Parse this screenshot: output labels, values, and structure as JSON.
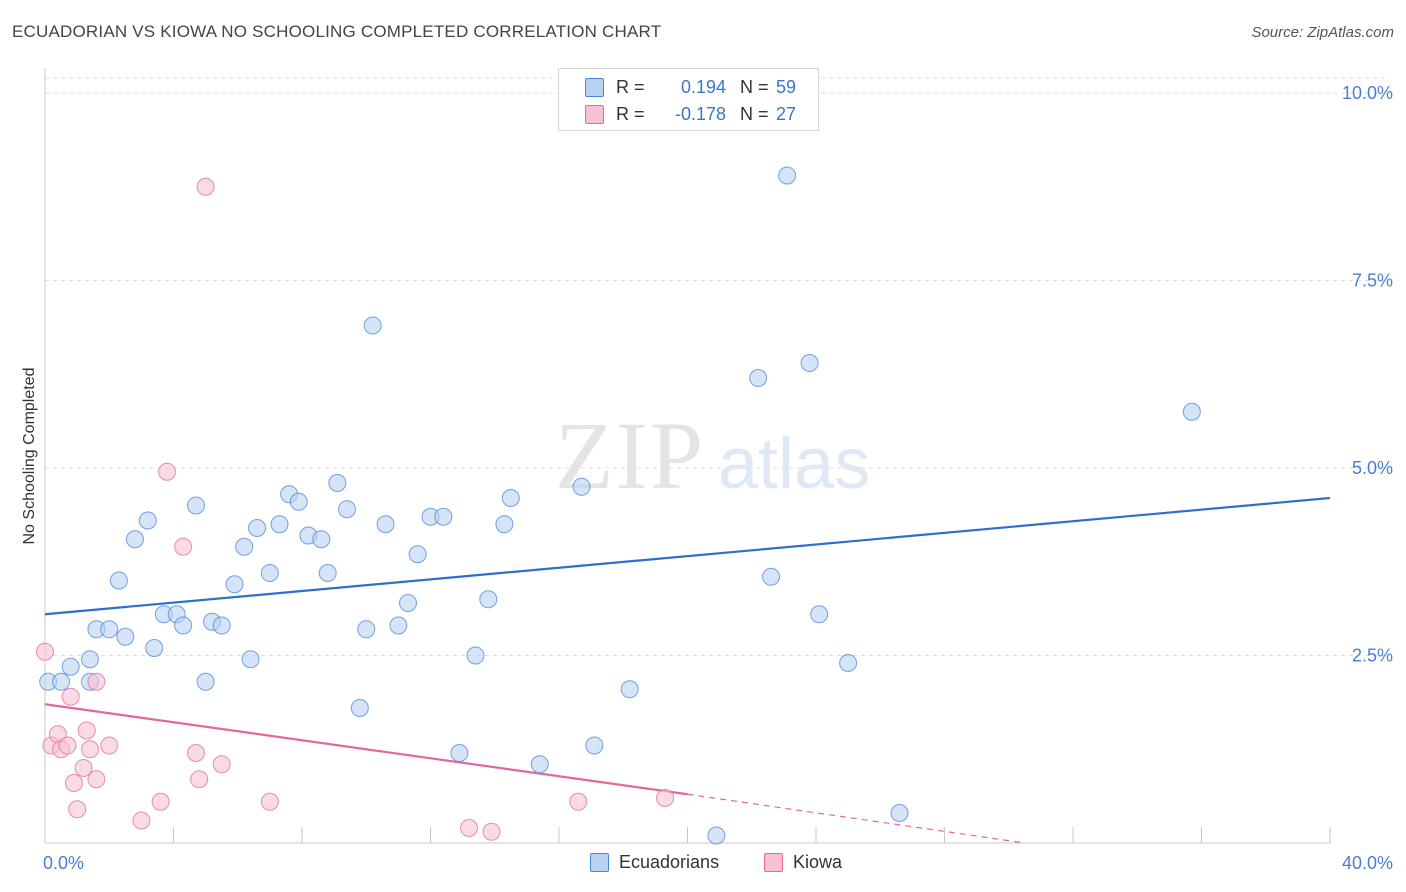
{
  "title": "ECUADORIAN VS KIOWA NO SCHOOLING COMPLETED CORRELATION CHART",
  "source": "Source: ZipAtlas.com",
  "watermark": {
    "zip": "ZIP",
    "atlas": "atlas"
  },
  "colors": {
    "blue": "#4a86d8",
    "blue_fill": "#b9d2f2",
    "blue_line": "#2e6fcc",
    "pink": "#e06c96",
    "pink_fill": "#f6c2d2",
    "pink_line": "#e0689a",
    "tick": "#4a7fd0",
    "grid": "#dedede"
  },
  "legend": {
    "rows": [
      {
        "r_label": "R =",
        "r_value": "0.194",
        "n_label": "N =",
        "n_value": "59",
        "series": "blue"
      },
      {
        "r_label": "R =",
        "r_value": "-0.178",
        "n_label": "N =",
        "n_value": "27",
        "series": "pink"
      }
    ]
  },
  "bottom_legend": [
    "Ecuadorians",
    "Kiowa"
  ],
  "chart_data": {
    "type": "scatter",
    "xlabel": "",
    "ylabel": "No Schooling Completed",
    "xlim": [
      0,
      40
    ],
    "ylim": [
      0,
      10.2
    ],
    "x_tick_labels": [
      "0.0%",
      "40.0%"
    ],
    "y_ticks": [
      2.5,
      5.0,
      7.5,
      10.0
    ],
    "y_tick_labels": [
      "2.5%",
      "5.0%",
      "7.5%",
      "10.0%"
    ],
    "grid": true,
    "series": [
      {
        "name": "Ecuadorians",
        "color": "blue",
        "points": [
          [
            0.1,
            2.15
          ],
          [
            0.5,
            2.15
          ],
          [
            0.8,
            2.35
          ],
          [
            1.4,
            2.15
          ],
          [
            1.4,
            2.45
          ],
          [
            1.6,
            2.85
          ],
          [
            2.0,
            2.85
          ],
          [
            2.3,
            3.5
          ],
          [
            2.5,
            2.75
          ],
          [
            2.8,
            4.05
          ],
          [
            3.2,
            4.3
          ],
          [
            3.4,
            2.6
          ],
          [
            3.7,
            3.05
          ],
          [
            4.1,
            3.05
          ],
          [
            4.3,
            2.9
          ],
          [
            4.7,
            4.5
          ],
          [
            5.0,
            2.15
          ],
          [
            5.2,
            2.95
          ],
          [
            5.5,
            2.9
          ],
          [
            5.9,
            3.45
          ],
          [
            6.2,
            3.95
          ],
          [
            6.4,
            2.45
          ],
          [
            6.6,
            4.2
          ],
          [
            7.0,
            3.6
          ],
          [
            7.3,
            4.25
          ],
          [
            7.6,
            4.65
          ],
          [
            7.9,
            4.55
          ],
          [
            8.2,
            4.1
          ],
          [
            8.6,
            4.05
          ],
          [
            8.8,
            3.6
          ],
          [
            9.1,
            4.8
          ],
          [
            9.4,
            4.45
          ],
          [
            9.8,
            1.8
          ],
          [
            10.0,
            2.85
          ],
          [
            10.2,
            6.9
          ],
          [
            10.6,
            4.25
          ],
          [
            11.0,
            2.9
          ],
          [
            11.3,
            3.2
          ],
          [
            11.6,
            3.85
          ],
          [
            12.0,
            4.35
          ],
          [
            12.4,
            4.35
          ],
          [
            12.9,
            1.2
          ],
          [
            13.4,
            2.5
          ],
          [
            13.8,
            3.25
          ],
          [
            14.3,
            4.25
          ],
          [
            14.5,
            4.6
          ],
          [
            15.4,
            1.05
          ],
          [
            16.7,
            4.75
          ],
          [
            17.1,
            1.3
          ],
          [
            18.2,
            2.05
          ],
          [
            20.9,
            0.1
          ],
          [
            22.2,
            6.2
          ],
          [
            22.6,
            3.55
          ],
          [
            23.1,
            8.9
          ],
          [
            23.8,
            6.4
          ],
          [
            24.1,
            3.05
          ],
          [
            25.0,
            2.4
          ],
          [
            26.6,
            0.4
          ],
          [
            35.7,
            5.75
          ]
        ]
      },
      {
        "name": "Kiowa",
        "color": "pink",
        "points": [
          [
            0.0,
            2.55
          ],
          [
            0.2,
            1.3
          ],
          [
            0.4,
            1.45
          ],
          [
            0.5,
            1.25
          ],
          [
            0.7,
            1.3
          ],
          [
            0.8,
            1.95
          ],
          [
            0.9,
            0.8
          ],
          [
            1.0,
            0.45
          ],
          [
            1.2,
            1.0
          ],
          [
            1.3,
            1.5
          ],
          [
            1.4,
            1.25
          ],
          [
            1.6,
            0.85
          ],
          [
            1.6,
            2.15
          ],
          [
            2.0,
            1.3
          ],
          [
            3.0,
            0.3
          ],
          [
            3.6,
            0.55
          ],
          [
            3.8,
            4.95
          ],
          [
            4.3,
            3.95
          ],
          [
            4.7,
            1.2
          ],
          [
            4.8,
            0.85
          ],
          [
            5.0,
            8.75
          ],
          [
            5.5,
            1.05
          ],
          [
            7.0,
            0.55
          ],
          [
            13.2,
            0.2
          ],
          [
            13.9,
            0.15
          ],
          [
            16.6,
            0.55
          ],
          [
            19.3,
            0.6
          ]
        ]
      }
    ],
    "trend_lines": [
      {
        "series": "Ecuadorians",
        "x": [
          0,
          40
        ],
        "y": [
          3.05,
          4.6
        ],
        "style": "solid"
      },
      {
        "series": "Kiowa",
        "x": [
          0,
          20
        ],
        "y": [
          1.85,
          0.65
        ],
        "style": "solid"
      },
      {
        "series": "Kiowa",
        "x": [
          20,
          30.5
        ],
        "y": [
          0.65,
          0.0
        ],
        "style": "dashed"
      }
    ]
  }
}
